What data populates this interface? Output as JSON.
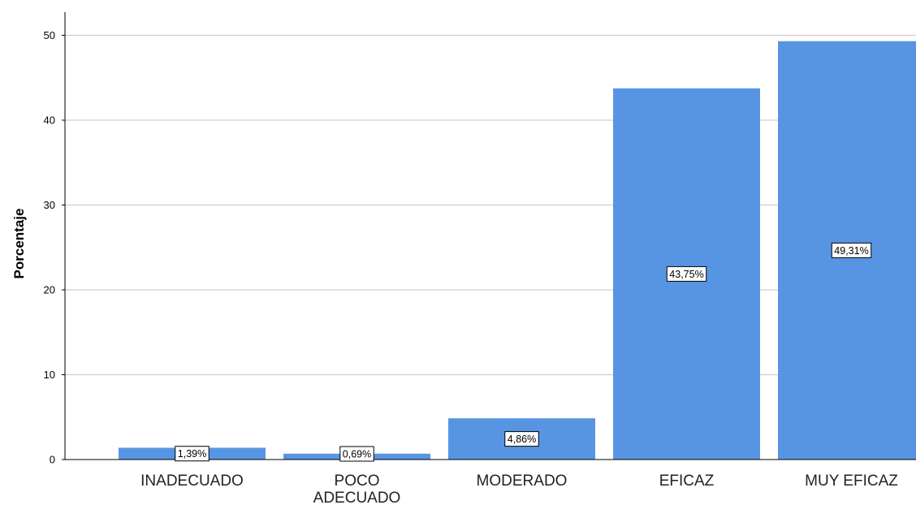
{
  "chart_data": {
    "type": "bar",
    "ylabel": "Porcentaje",
    "xlabel": "",
    "ylim": [
      0,
      52
    ],
    "yticks": [
      0,
      10,
      20,
      30,
      40,
      50
    ],
    "grid": true,
    "bar_color": "#5795e3",
    "categories": [
      [
        "INADECUADO"
      ],
      [
        "POCO",
        "ADECUADO"
      ],
      [
        "MODERADO"
      ],
      [
        "EFICAZ"
      ],
      [
        "MUY EFICAZ"
      ]
    ],
    "values": [
      1.39,
      0.69,
      4.86,
      43.75,
      49.31
    ],
    "data_labels": [
      "1,39%",
      "0,69%",
      "4,86%",
      "43,75%",
      "49,31%"
    ]
  }
}
